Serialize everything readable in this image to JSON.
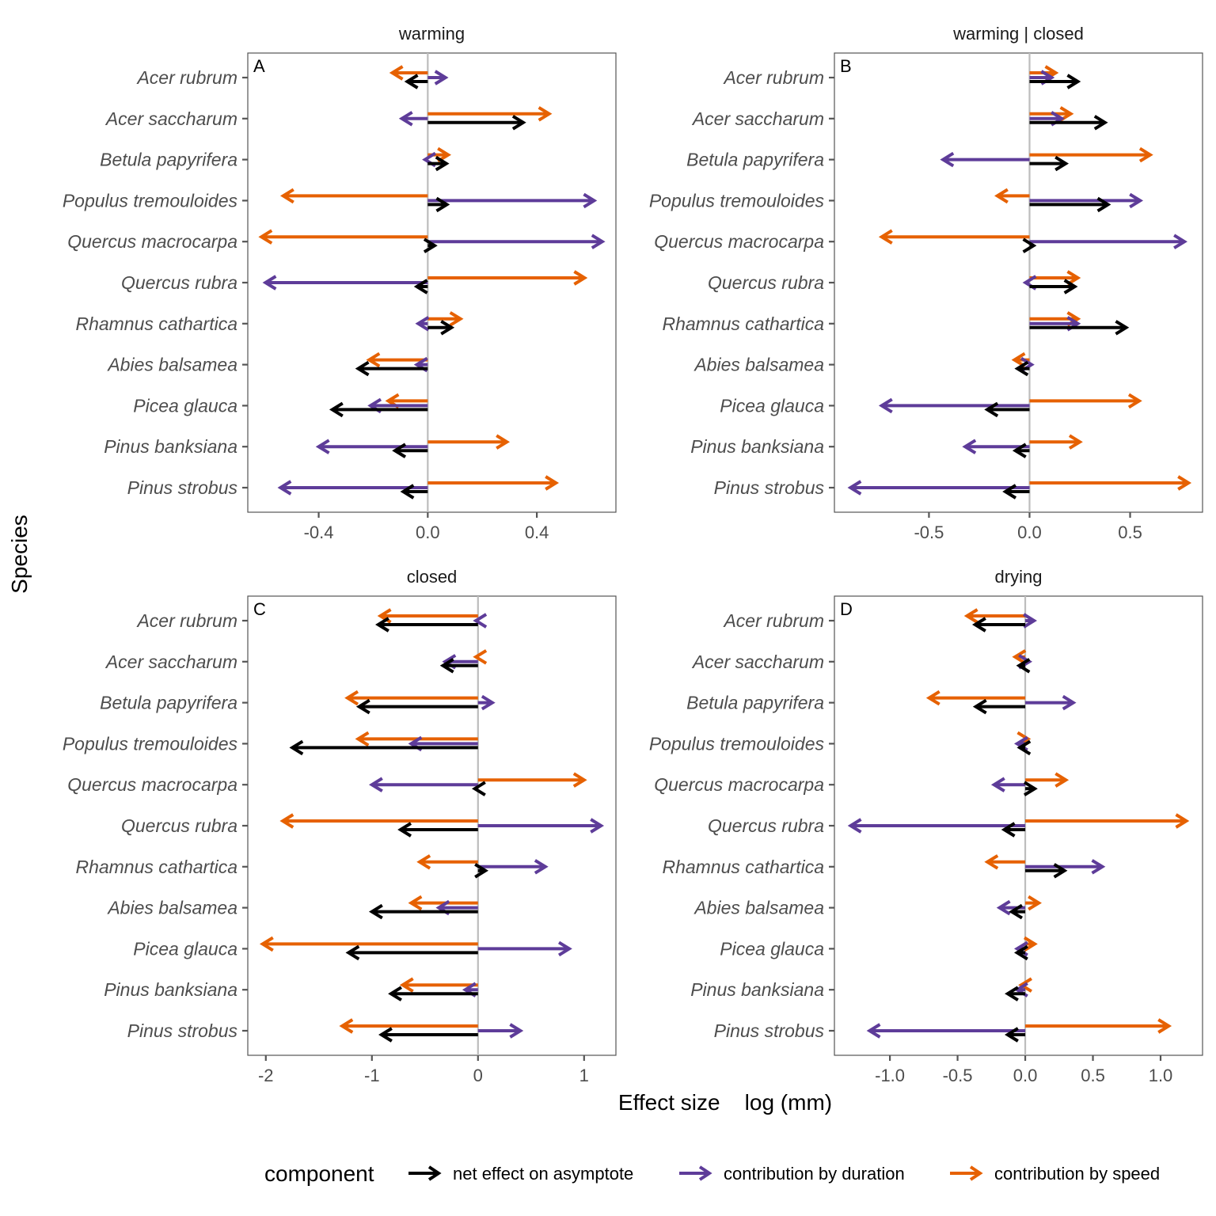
{
  "chart_data": {
    "type": "arrow-segment",
    "ylabel": "Species",
    "xlabel": "Effect size    log (mm)",
    "species": [
      "Acer rubrum",
      "Acer saccharum",
      "Betula papyrifera",
      "Populus tremouloides",
      "Quercus macrocarpa",
      "Quercus rubra",
      "Rhamnus cathartica",
      "Abies balsamea",
      "Picea glauca",
      "Pinus banksiana",
      "Pinus strobus"
    ],
    "legend": {
      "title": "component",
      "position": "bottom",
      "entries": [
        {
          "key": "net",
          "label": "net effect on asymptote",
          "color": "#000000"
        },
        {
          "key": "duration",
          "label": "contribution by duration",
          "color": "#5e3c99"
        },
        {
          "key": "speed",
          "label": "contribution by speed",
          "color": "#e66101"
        }
      ]
    },
    "panels": [
      {
        "tag": "A",
        "title": "warming",
        "xlim": [
          -0.66,
          0.69
        ],
        "ticks": [
          -0.4,
          0.0,
          0.4
        ],
        "tick_labels": [
          "-0.4",
          "0.0",
          "0.4"
        ],
        "series": {
          "speed": [
            -0.13,
            0.445,
            0.075,
            -0.53,
            -0.61,
            0.575,
            0.12,
            -0.215,
            -0.145,
            0.29,
            0.47
          ],
          "duration": [
            0.065,
            -0.095,
            -0.01,
            0.61,
            0.64,
            -0.595,
            -0.035,
            -0.04,
            -0.21,
            -0.4,
            -0.54
          ],
          "net": [
            -0.075,
            0.35,
            0.068,
            0.07,
            0.025,
            -0.04,
            0.087,
            -0.255,
            -0.35,
            -0.12,
            -0.09
          ]
        }
      },
      {
        "tag": "B",
        "title": "warming | closed",
        "xlim": [
          -0.97,
          0.86
        ],
        "ticks": [
          -0.5,
          0.0,
          0.5
        ],
        "tick_labels": [
          "-0.5",
          "0.0",
          "0.5"
        ],
        "series": {
          "speed": [
            0.13,
            0.205,
            0.6,
            -0.16,
            -0.735,
            0.24,
            0.24,
            -0.075,
            0.545,
            0.25,
            0.79
          ],
          "duration": [
            0.11,
            0.16,
            -0.43,
            0.55,
            0.77,
            -0.02,
            0.24,
            0.01,
            -0.735,
            -0.32,
            -0.89
          ],
          "net": [
            0.24,
            0.375,
            0.18,
            0.39,
            0.02,
            0.225,
            0.48,
            -0.06,
            -0.21,
            -0.07,
            -0.12
          ]
        }
      },
      {
        "tag": "C",
        "title": "closed",
        "xlim": [
          -2.17,
          1.3
        ],
        "ticks": [
          -2,
          -1,
          0,
          1
        ],
        "tick_labels": [
          "-2",
          "-1",
          "0",
          "1"
        ],
        "series": {
          "speed": [
            -0.92,
            -0.02,
            -1.23,
            -1.13,
            1.0,
            -1.84,
            -0.55,
            -0.63,
            -2.03,
            -0.71,
            -1.28
          ],
          "duration": [
            -0.02,
            -0.31,
            0.135,
            -0.63,
            -1.0,
            1.16,
            0.635,
            -0.37,
            0.86,
            -0.12,
            0.4
          ],
          "net": [
            -0.94,
            -0.33,
            -1.12,
            -1.75,
            -0.03,
            -0.73,
            0.07,
            -1.0,
            -1.22,
            -0.82,
            -0.91
          ]
        }
      },
      {
        "tag": "D",
        "title": "drying",
        "xlim": [
          -1.41,
          1.31
        ],
        "ticks": [
          -1.0,
          -0.5,
          0.0,
          0.5,
          1.0
        ],
        "tick_labels": [
          "-1.0",
          "-0.5",
          "0.0",
          "0.5",
          "1.0"
        ],
        "series": {
          "speed": [
            -0.43,
            -0.075,
            -0.71,
            0.02,
            0.3,
            1.19,
            -0.28,
            0.1,
            0.07,
            -0.03,
            1.06
          ],
          "duration": [
            0.065,
            0.03,
            0.355,
            -0.06,
            -0.23,
            -1.29,
            0.57,
            -0.19,
            -0.06,
            -0.06,
            -1.15
          ],
          "net": [
            -0.37,
            -0.045,
            -0.365,
            -0.04,
            0.07,
            -0.155,
            0.29,
            -0.1,
            -0.06,
            -0.13,
            -0.13
          ]
        }
      }
    ]
  }
}
